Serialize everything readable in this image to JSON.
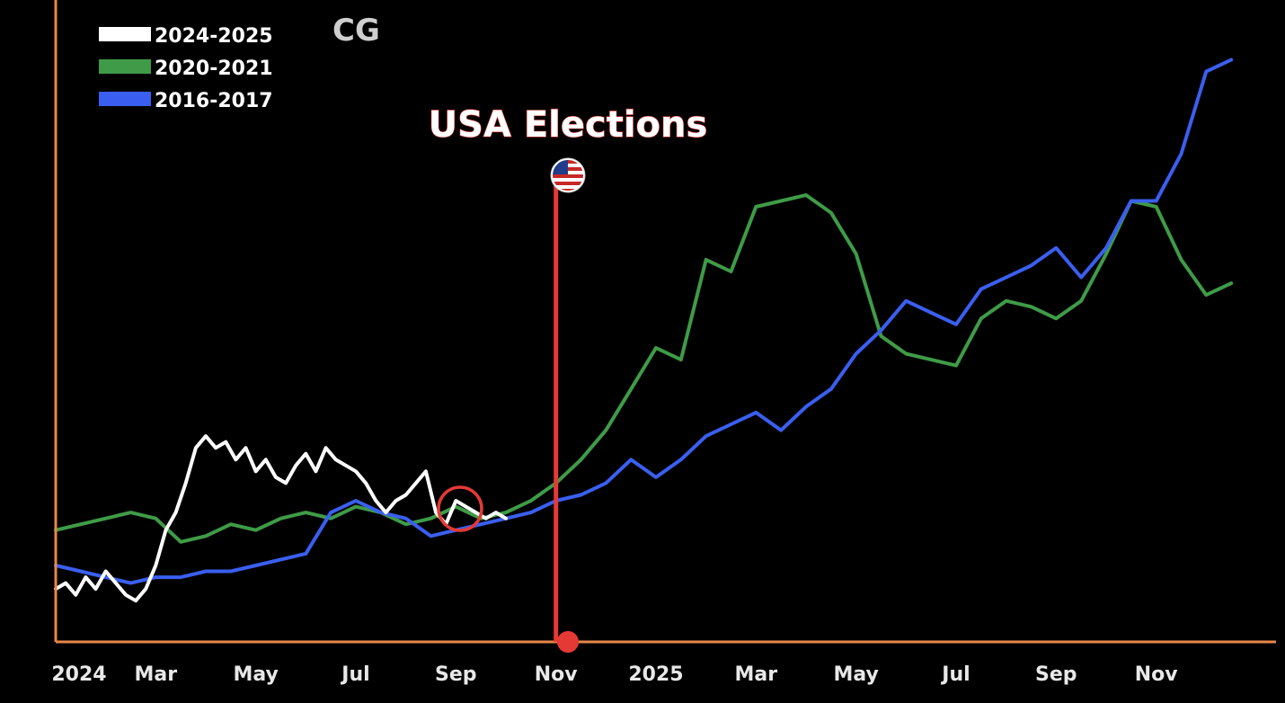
{
  "chart_data": {
    "type": "line",
    "title": "",
    "xlabel": "",
    "ylabel": "",
    "x_ticks": [
      "2024",
      "Mar",
      "May",
      "Jul",
      "Sep",
      "Nov",
      "2025",
      "Mar",
      "May",
      "Jul",
      "Sep",
      "Nov"
    ],
    "xlim": [
      0,
      24
    ],
    "ylim": [
      0,
      100
    ],
    "grid": false,
    "legend_position": "top-left",
    "legend": [
      "2024-2025",
      "2020-2021",
      "2016-2017"
    ],
    "annotations": [
      {
        "text": "USA Elections",
        "x": 10
      }
    ],
    "logo_text": "CG",
    "colors": {
      "background": "#000000",
      "axis": "#e8874a",
      "election_line": "#e53935",
      "marker_ring": "#e53935"
    },
    "series": [
      {
        "name": "2024-2025",
        "color": "#ffffff",
        "x": [
          0,
          0.2,
          0.4,
          0.6,
          0.8,
          1.0,
          1.2,
          1.4,
          1.6,
          1.8,
          2.0,
          2.2,
          2.4,
          2.6,
          2.8,
          3.0,
          3.2,
          3.4,
          3.6,
          3.8,
          4.0,
          4.2,
          4.4,
          4.6,
          4.8,
          5.0,
          5.2,
          5.4,
          5.6,
          5.8,
          6.0,
          6.2,
          6.4,
          6.6,
          6.8,
          7.0,
          7.2,
          7.4,
          7.6,
          7.8,
          8.0,
          8.2,
          8.4,
          8.6,
          8.8,
          9.0
        ],
        "values": [
          9,
          10,
          8,
          11,
          9,
          12,
          10,
          8,
          7,
          9,
          13,
          19,
          22,
          27,
          33,
          35,
          33,
          34,
          31,
          33,
          29,
          31,
          28,
          27,
          30,
          32,
          29,
          33,
          31,
          30,
          29,
          27,
          24,
          22,
          24,
          25,
          27,
          29,
          22,
          20,
          24,
          23,
          22,
          21,
          22,
          21
        ]
      },
      {
        "name": "2020-2021",
        "color": "#3f9b47",
        "x": [
          0,
          0.5,
          1.0,
          1.5,
          2.0,
          2.5,
          3.0,
          3.5,
          4.0,
          4.5,
          5.0,
          5.5,
          6.0,
          6.5,
          7.0,
          7.5,
          8.0,
          8.5,
          9.0,
          9.5,
          10.0,
          10.5,
          11.0,
          11.5,
          12.0,
          12.5,
          13.0,
          13.5,
          14.0,
          14.5,
          15.0,
          15.5,
          16.0,
          16.5,
          17.0,
          17.5,
          18.0,
          18.5,
          19.0,
          19.5,
          20.0,
          20.5,
          21.0,
          21.5,
          22.0,
          22.5,
          23.0,
          23.5
        ],
        "values": [
          19,
          20,
          21,
          22,
          21,
          17,
          18,
          20,
          19,
          21,
          22,
          21,
          23,
          22,
          20,
          21,
          23,
          21,
          22,
          24,
          27,
          31,
          36,
          43,
          50,
          48,
          65,
          63,
          74,
          75,
          76,
          73,
          66,
          52,
          49,
          48,
          47,
          55,
          58,
          57,
          55,
          58,
          66,
          75,
          74,
          65,
          59,
          61
        ]
      },
      {
        "name": "2016-2017",
        "color": "#3a5ff0",
        "x": [
          0,
          0.5,
          1.0,
          1.5,
          2.0,
          2.5,
          3.0,
          3.5,
          4.0,
          4.5,
          5.0,
          5.5,
          6.0,
          6.5,
          7.0,
          7.5,
          8.0,
          8.5,
          9.0,
          9.5,
          10.0,
          10.5,
          11.0,
          11.5,
          12.0,
          12.5,
          13.0,
          13.5,
          14.0,
          14.5,
          15.0,
          15.5,
          16.0,
          16.5,
          17.0,
          17.5,
          18.0,
          18.5,
          19.0,
          19.5,
          20.0,
          20.5,
          21.0,
          21.5,
          22.0,
          22.5,
          23.0,
          23.5
        ],
        "values": [
          13,
          12,
          11,
          10,
          11,
          11,
          12,
          12,
          13,
          14,
          15,
          22,
          24,
          22,
          21,
          18,
          19,
          20,
          21,
          22,
          24,
          25,
          27,
          31,
          28,
          31,
          35,
          37,
          39,
          36,
          40,
          43,
          49,
          53,
          58,
          56,
          54,
          60,
          62,
          64,
          67,
          62,
          67,
          75,
          75,
          83,
          97,
          99
        ]
      }
    ]
  }
}
